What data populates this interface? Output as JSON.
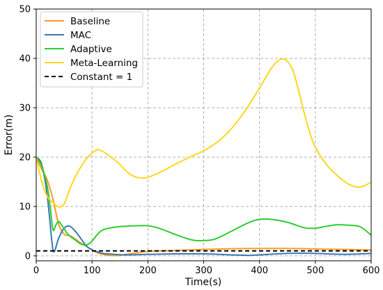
{
  "chart_data": {
    "type": "line",
    "xlabel": "Time(s)",
    "ylabel": "Error(m)",
    "xlim": [
      0,
      600
    ],
    "ylim": [
      -1,
      50
    ],
    "xticks": [
      0,
      100,
      200,
      300,
      400,
      500,
      600
    ],
    "yticks": [
      0,
      10,
      20,
      30,
      40,
      50
    ],
    "grid": true,
    "legend_position": "top-left",
    "series": [
      {
        "name": "Baseline",
        "color": "#ff9a1f",
        "style": "solid",
        "x": [
          0,
          10,
          20,
          30,
          40,
          50,
          60,
          70,
          80,
          90,
          100,
          110,
          120,
          130,
          140,
          150,
          160,
          180,
          200,
          250,
          300,
          350,
          400,
          450,
          500,
          550,
          600
        ],
        "y": [
          20,
          17.5,
          15.3,
          11.5,
          6.5,
          4.4,
          4.1,
          3.4,
          2.6,
          1.9,
          1.2,
          0.6,
          0.3,
          0.1,
          0.05,
          0.1,
          0.3,
          0.6,
          0.9,
          1.1,
          1.3,
          1.45,
          1.5,
          1.5,
          1.4,
          1.3,
          1.2
        ]
      },
      {
        "name": "MAC",
        "color": "#3a77b4",
        "style": "solid",
        "x": [
          0,
          10,
          20,
          28,
          32,
          40,
          50,
          60,
          70,
          80,
          90,
          100,
          110,
          120,
          140,
          160,
          200,
          250,
          300,
          350,
          380,
          400,
          450,
          500,
          550,
          600
        ],
        "y": [
          20,
          18.5,
          12,
          3,
          0.8,
          3.5,
          5.6,
          6,
          5,
          3.5,
          2,
          1.2,
          0.8,
          0.5,
          0.3,
          0.2,
          0.3,
          0.4,
          0.4,
          0.2,
          0.1,
          0.2,
          0.5,
          0.5,
          0.3,
          0.5
        ]
      },
      {
        "name": "Adaptive",
        "color": "#2ecc2e",
        "style": "solid",
        "x": [
          0,
          10,
          20,
          25,
          30,
          35,
          40,
          45,
          50,
          55,
          60,
          70,
          80,
          90,
          100,
          110,
          120,
          140,
          160,
          180,
          200,
          220,
          250,
          280,
          300,
          320,
          350,
          380,
          400,
          420,
          450,
          480,
          500,
          520,
          540,
          560,
          580,
          600
        ],
        "y": [
          20,
          18.2,
          14,
          10,
          5.3,
          6.2,
          7,
          6.3,
          5.5,
          4.6,
          4.0,
          3.2,
          2.4,
          2.2,
          3.0,
          4.4,
          5.3,
          5.8,
          6.0,
          6.1,
          6.1,
          5.6,
          4.3,
          3.2,
          3.1,
          3.4,
          5.0,
          6.7,
          7.4,
          7.4,
          6.8,
          5.7,
          5.6,
          6.0,
          6.3,
          6.2,
          5.9,
          4.2
        ]
      },
      {
        "name": "Meta-Learning",
        "color": "#ffd61c",
        "style": "solid",
        "x": [
          0,
          10,
          20,
          30,
          40,
          50,
          60,
          70,
          80,
          90,
          100,
          110,
          120,
          130,
          140,
          150,
          160,
          170,
          180,
          190,
          200,
          225,
          250,
          275,
          300,
          325,
          350,
          375,
          400,
          420,
          430,
          440,
          450,
          460,
          470,
          480,
          490,
          500,
          520,
          540,
          560,
          580,
          600
        ],
        "y": [
          20,
          15,
          12,
          10.8,
          9.9,
          10.5,
          13.5,
          16,
          18,
          19.7,
          20.8,
          21.5,
          21.1,
          20.3,
          19.5,
          18.5,
          17.3,
          16.4,
          15.9,
          15.8,
          15.9,
          17.1,
          18.6,
          20,
          21.3,
          23.1,
          25.8,
          29.5,
          34,
          37.8,
          39.2,
          39.9,
          39.4,
          37.5,
          33.5,
          29,
          25,
          22,
          18.5,
          16.2,
          14.5,
          13.9,
          14.9
        ]
      },
      {
        "name": "Constant = 1",
        "color": "#000000",
        "style": "dashed",
        "x": [
          0,
          600
        ],
        "y": [
          1,
          1
        ]
      }
    ]
  }
}
